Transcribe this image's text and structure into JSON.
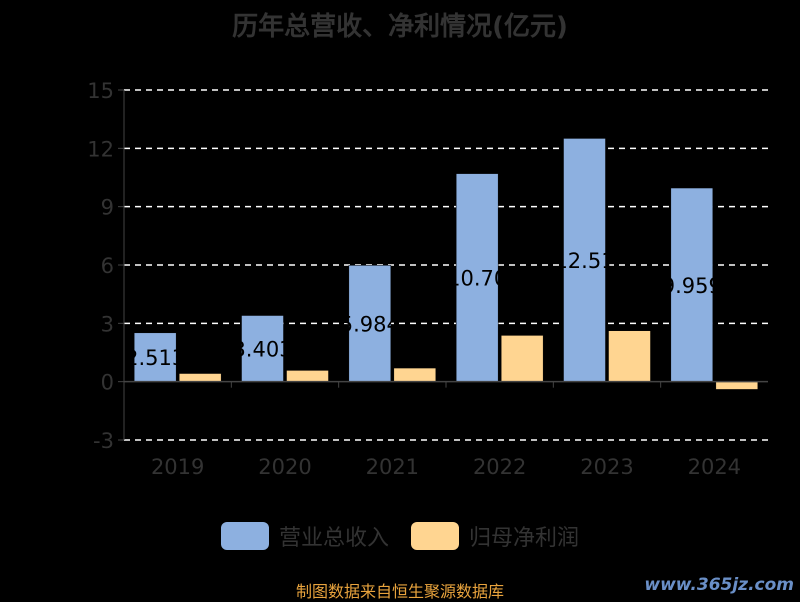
{
  "chart_data": {
    "type": "bar",
    "title": "历年总营收、净利情况(亿元)",
    "categories": [
      "2019",
      "2020",
      "2021",
      "2022",
      "2023",
      "2024"
    ],
    "series": [
      {
        "name": "营业总收入",
        "color": "#8DB0E0",
        "values": [
          2.513,
          3.403,
          5.984,
          10.7,
          12.51,
          9.959
        ],
        "labels": [
          "2.513",
          "3.403",
          "5.984",
          "10.70",
          "12.51",
          "9.959"
        ]
      },
      {
        "name": "归母净利润",
        "color": "#FFD591",
        "values": [
          0.42,
          0.58,
          0.7,
          2.38,
          2.62,
          -0.4
        ]
      }
    ],
    "yticks": [
      -3,
      0,
      3,
      6,
      9,
      12,
      15
    ],
    "ylim": [
      -3,
      15
    ],
    "grid": true,
    "legend_position": "bottom"
  },
  "footer": {
    "source": "制图数据来自恒生聚源数据库",
    "watermark": "www.365jz.com"
  }
}
